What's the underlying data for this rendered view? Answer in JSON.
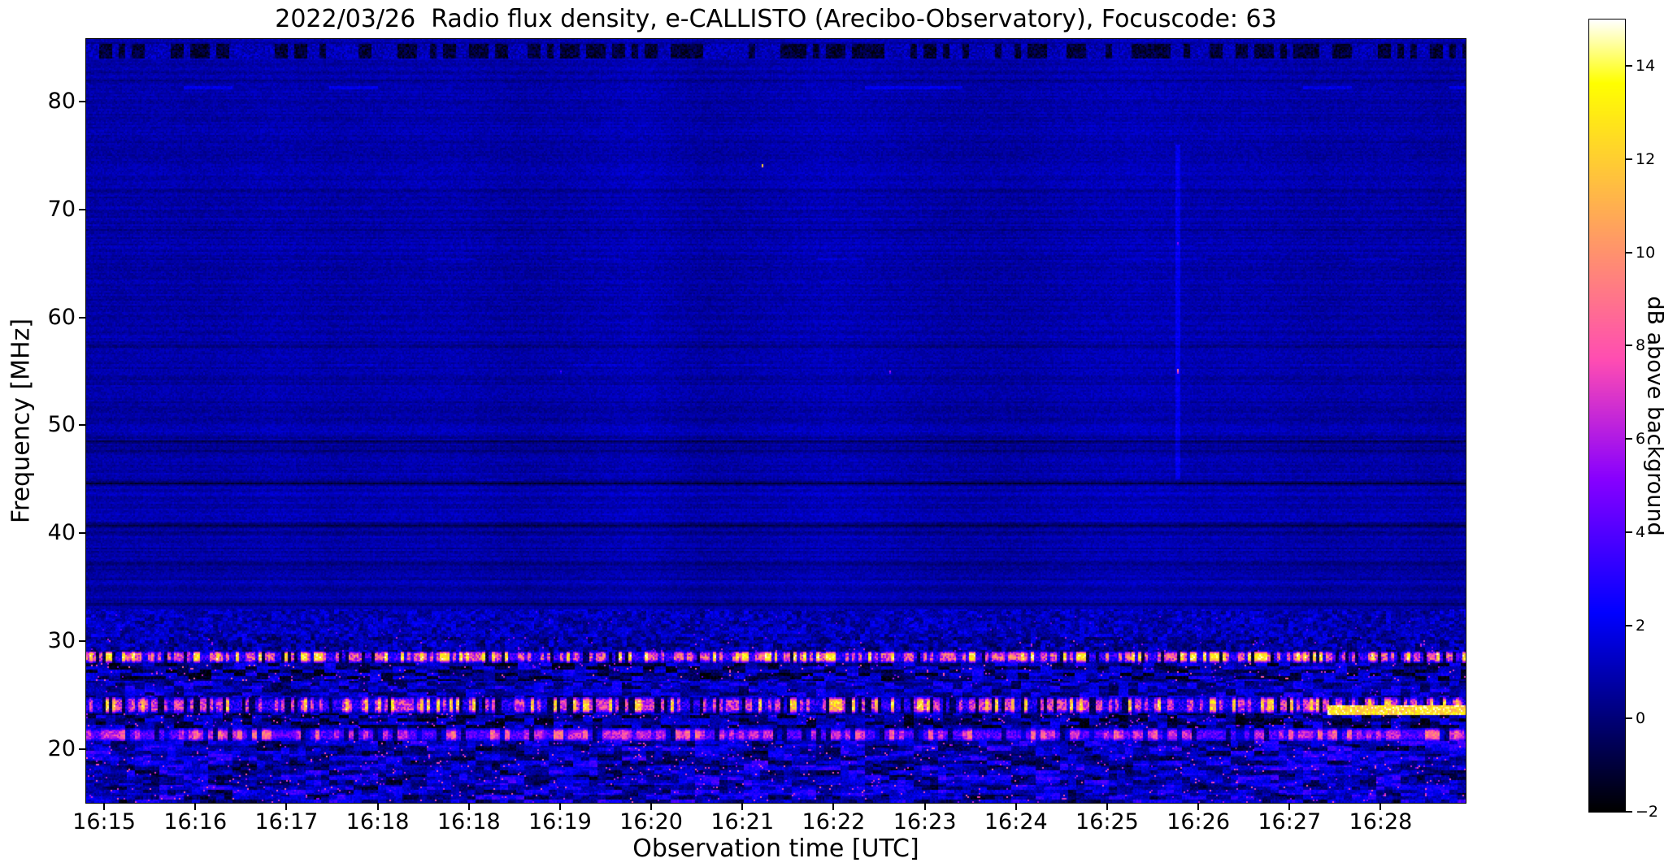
{
  "figure": {
    "background": "#ffffff",
    "text_color": "#000000"
  },
  "chart_data": {
    "type": "heatmap",
    "title": "2022/03/26  Radio flux density, e-CALLISTO (Arecibo-Observatory), Focuscode: 63",
    "xlabel": "Observation time [UTC]",
    "ylabel": "Frequency [MHz]",
    "colorbar_label": "dB above background",
    "colormap": "gnuplot2",
    "accent_colors": {
      "background_blue": "#0000a8",
      "burst_yellow": "#ffff00",
      "burst_white": "#ffffff",
      "rfi_magenta": "#d930c0",
      "deep_black": "#000000"
    },
    "value_range": {
      "vmin": -2,
      "vmax": 15
    },
    "freq_range": {
      "fmin": 15.0,
      "fmax": 85.8
    },
    "time_range": {
      "start": "16:15",
      "end": "16:29"
    },
    "x_ticks": {
      "labels": [
        "16:15",
        "16:16",
        "16:17",
        "16:18",
        "16:18",
        "16:19",
        "16:20",
        "16:21",
        "16:22",
        "16:23",
        "16:24",
        "16:25",
        "16:26",
        "16:27",
        "16:28"
      ],
      "first_offset_frac": 0.013,
      "spacing_frac": 0.0661
    },
    "y_ticks": [
      80,
      70,
      60,
      50,
      40,
      30,
      20
    ],
    "colorbar_ticks": [
      14,
      12,
      10,
      8,
      6,
      4,
      2,
      0,
      -2
    ],
    "seed": 63,
    "background_model": {
      "base": 0.85,
      "noise": 0.9,
      "row_noise": 0.32,
      "col_mod": 0.22
    },
    "dark_lines": [
      {
        "f": 48.5,
        "depth": 1.1
      },
      {
        "f": 47.6,
        "depth": 0.8
      },
      {
        "f": 44.6,
        "depth": 1.5
      },
      {
        "f": 40.7,
        "depth": 1.6
      },
      {
        "f": 40.1,
        "depth": 1.0
      },
      {
        "f": 37.2,
        "depth": 1.0
      },
      {
        "f": 35.0,
        "depth": 0.7
      },
      {
        "f": 33.4,
        "depth": 0.8
      },
      {
        "f": 52.1,
        "depth": 0.5
      },
      {
        "f": 57.3,
        "depth": 0.4
      },
      {
        "f": 61.8,
        "depth": 0.4
      },
      {
        "f": 65.0,
        "depth": 0.35
      },
      {
        "f": 68.1,
        "depth": 0.35
      },
      {
        "f": 71.6,
        "depth": 0.3
      },
      {
        "f": 78.5,
        "depth": 0.3
      },
      {
        "f": 81.9,
        "depth": 0.45
      }
    ],
    "faint_lines": [
      {
        "f": 81.3,
        "boost": 1.1,
        "prob": 0.3
      },
      {
        "f": 65.4,
        "boost": 0.8,
        "prob": 0.25
      },
      {
        "f": 55.6,
        "boost": 0.5,
        "prob": 0.15
      },
      {
        "f": 44.9,
        "boost": 0.6,
        "prob": 0.2
      }
    ],
    "bands": [
      {
        "name": "top-rfi-dashes",
        "f_lo": 84.0,
        "f_hi": 85.35,
        "type": "dashes",
        "clump": 4,
        "dark_frac": 0.52,
        "dark_lo": -2.0,
        "dark_hi": -0.1,
        "lite_lo": 0.2,
        "lite_hi": 1.9
      },
      {
        "name": "upper-30s-rough",
        "f_lo": 30.3,
        "f_hi": 33.0,
        "type": "blotch",
        "clump": 3,
        "lo": 0.0,
        "hi": 2.1,
        "bright_prob": 0.004,
        "bright_lo": 2.5,
        "bright_hi": 4.5
      },
      {
        "name": "transition-29-30",
        "f_lo": 29.05,
        "f_hi": 30.3,
        "type": "blotch",
        "clump": 3,
        "lo": -0.6,
        "hi": 2.1,
        "bright_prob": 0.012,
        "bright_lo": 3.0,
        "bright_hi": 7.0
      },
      {
        "name": "rfi-line-28mhz",
        "f_lo": 28.0,
        "f_hi": 29.05,
        "type": "speckle",
        "clump": 2,
        "levels": [
          [
            0.1,
            -1.8,
            0.5
          ],
          [
            0.45,
            1.5,
            5.0
          ],
          [
            0.82,
            5.0,
            11.0
          ],
          [
            1.01,
            11.0,
            15.0
          ]
        ]
      },
      {
        "name": "dark-blotch-26-28",
        "f_lo": 26.3,
        "f_hi": 28.0,
        "type": "blotch",
        "clump": 7,
        "lo": -1.9,
        "hi": 2.6,
        "bright_prob": 0.025,
        "bright_lo": 4.0,
        "bright_hi": 9.0
      },
      {
        "name": "mid-blotch-25-26",
        "f_lo": 24.8,
        "f_hi": 26.3,
        "type": "blotch",
        "clump": 6,
        "lo": -0.8,
        "hi": 2.8,
        "bright_prob": 0.01,
        "bright_lo": 3.0,
        "bright_hi": 6.0
      },
      {
        "name": "rfi-line-24mhz",
        "f_lo": 23.3,
        "f_hi": 24.8,
        "type": "speckle",
        "clump": 2,
        "levels": [
          [
            0.18,
            -1.6,
            0.4
          ],
          [
            0.55,
            1.0,
            4.5
          ],
          [
            0.88,
            4.5,
            9.5
          ],
          [
            1.01,
            9.5,
            14.5
          ]
        ]
      },
      {
        "name": "dark-blotch-22-23",
        "f_lo": 21.9,
        "f_hi": 23.3,
        "type": "blotch",
        "clump": 6,
        "lo": -1.9,
        "hi": 2.4,
        "bright_prob": 0.03,
        "bright_lo": 4.0,
        "bright_hi": 8.0
      },
      {
        "name": "magenta-line-21mhz",
        "f_lo": 20.7,
        "f_hi": 21.9,
        "type": "speckle",
        "clump": 3,
        "levels": [
          [
            0.1,
            -1.0,
            1.0
          ],
          [
            0.2,
            1.0,
            2.5
          ],
          [
            0.65,
            2.5,
            5.5
          ],
          [
            0.9,
            5.0,
            8.0
          ],
          [
            1.01,
            7.0,
            10.5
          ]
        ]
      },
      {
        "name": "bottom-blotch",
        "f_lo": 15.0,
        "f_hi": 20.7,
        "type": "multiblotch",
        "clump": 5,
        "lo": -1.8,
        "hi": 4.0,
        "bright_prob": 0.02,
        "bright_lo": 5.0,
        "bright_hi": 8.5
      }
    ],
    "bright_streaks": [
      {
        "t_lo": 0.9,
        "t_hi": 1.0,
        "f_lo": 23.35,
        "f_hi": 24.05,
        "lo": 10.5,
        "hi": 15.0
      }
    ],
    "bright_points": [
      {
        "t_frac": 0.489,
        "f": 74.2,
        "v": 12.5,
        "w": 1,
        "h": 2
      },
      {
        "t_frac": 0.791,
        "f": 55.2,
        "v": 9.5,
        "w": 1,
        "h": 3
      },
      {
        "t_frac": 0.791,
        "f": 67.0,
        "v": 5.5,
        "w": 1,
        "h": 2
      },
      {
        "t_frac": 0.582,
        "f": 55.0,
        "v": 6.0,
        "w": 1,
        "h": 2
      },
      {
        "t_frac": 0.343,
        "f": 55.1,
        "v": 4.0,
        "w": 1,
        "h": 2
      }
    ],
    "vertical_streaks": [
      {
        "t_frac": 0.791,
        "f_lo": 45.0,
        "f_hi": 76.0,
        "boost": 1.1
      }
    ]
  }
}
